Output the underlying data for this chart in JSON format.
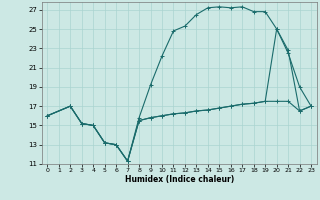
{
  "xlabel": "Humidex (Indice chaleur)",
  "bg_color": "#cce8e4",
  "grid_color": "#aad4d0",
  "line_color": "#1a6b6b",
  "xlim": [
    -0.5,
    23.5
  ],
  "ylim": [
    11,
    27.8
  ],
  "xticks": [
    0,
    1,
    2,
    3,
    4,
    5,
    6,
    7,
    8,
    9,
    10,
    11,
    12,
    13,
    14,
    15,
    16,
    17,
    18,
    19,
    20,
    21,
    22,
    23
  ],
  "yticks": [
    11,
    13,
    15,
    17,
    19,
    21,
    23,
    25,
    27
  ],
  "line1_x": [
    0,
    2,
    3,
    4,
    5,
    6,
    7,
    8,
    9,
    10,
    11,
    12,
    13,
    14,
    15,
    16,
    17,
    18,
    19,
    20,
    21,
    22,
    23
  ],
  "line1_y": [
    16,
    17,
    15.2,
    15,
    13.2,
    13,
    11.3,
    15.8,
    19.2,
    22.2,
    24.8,
    25.3,
    26.5,
    27.2,
    27.3,
    27.2,
    27.3,
    26.8,
    26.8,
    25,
    22.5,
    19,
    17
  ],
  "line2_x": [
    0,
    2,
    3,
    4,
    5,
    6,
    7,
    8,
    9,
    10,
    11,
    12,
    13,
    14,
    15,
    16,
    17,
    18,
    19,
    20,
    21,
    22,
    23
  ],
  "line2_y": [
    16,
    17,
    15.2,
    15,
    13.2,
    13,
    11.3,
    15.5,
    15.8,
    16.0,
    16.2,
    16.3,
    16.5,
    16.6,
    16.8,
    17.0,
    17.2,
    17.3,
    17.5,
    25.0,
    22.8,
    16.5,
    17
  ],
  "line3_x": [
    0,
    2,
    3,
    4,
    5,
    6,
    7,
    8,
    9,
    10,
    11,
    12,
    13,
    14,
    15,
    16,
    17,
    18,
    19,
    20,
    21,
    22,
    23
  ],
  "line3_y": [
    16,
    17,
    15.2,
    15,
    13.2,
    13,
    11.3,
    15.5,
    15.8,
    16.0,
    16.2,
    16.3,
    16.5,
    16.6,
    16.8,
    17.0,
    17.2,
    17.3,
    17.5,
    17.5,
    17.5,
    16.5,
    17
  ]
}
